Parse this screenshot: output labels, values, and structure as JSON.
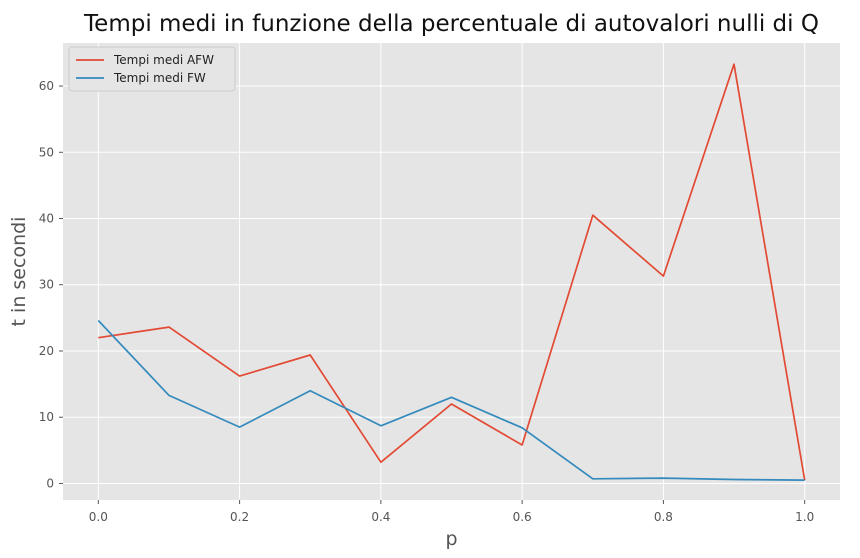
{
  "chart_data": {
    "type": "line",
    "title": "Tempi medi in funzione della percentuale di autovalori nulli di Q",
    "xlabel": "p",
    "ylabel": "t in secondi",
    "x": [
      0.0,
      0.1,
      0.2,
      0.3,
      0.4,
      0.5,
      0.6,
      0.7,
      0.8,
      0.9,
      1.0
    ],
    "xlim": [
      -0.05,
      1.05
    ],
    "ylim": [
      -2.5,
      66.5
    ],
    "xticks": [
      "0.0",
      "0.2",
      "0.4",
      "0.6",
      "0.8",
      "1.0"
    ],
    "xtick_values": [
      0.0,
      0.2,
      0.4,
      0.6,
      0.8,
      1.0
    ],
    "yticks": [
      "0",
      "10",
      "20",
      "30",
      "40",
      "50",
      "60"
    ],
    "ytick_values": [
      0,
      10,
      20,
      30,
      40,
      50,
      60
    ],
    "grid": true,
    "legend_position": "top-left",
    "series": [
      {
        "name": "Tempi medi AFW",
        "color": "#E24A33",
        "values": [
          22.0,
          23.6,
          16.2,
          19.4,
          3.2,
          12.0,
          5.8,
          40.5,
          31.3,
          63.3,
          0.5
        ]
      },
      {
        "name": "Tempi medi FW",
        "color": "#348ABD",
        "values": [
          24.6,
          13.3,
          8.5,
          14.0,
          8.7,
          13.0,
          8.4,
          0.7,
          0.8,
          0.6,
          0.5
        ]
      }
    ]
  },
  "colors": {
    "plot_background": "#E5E5E5",
    "grid": "#FFFFFF"
  }
}
